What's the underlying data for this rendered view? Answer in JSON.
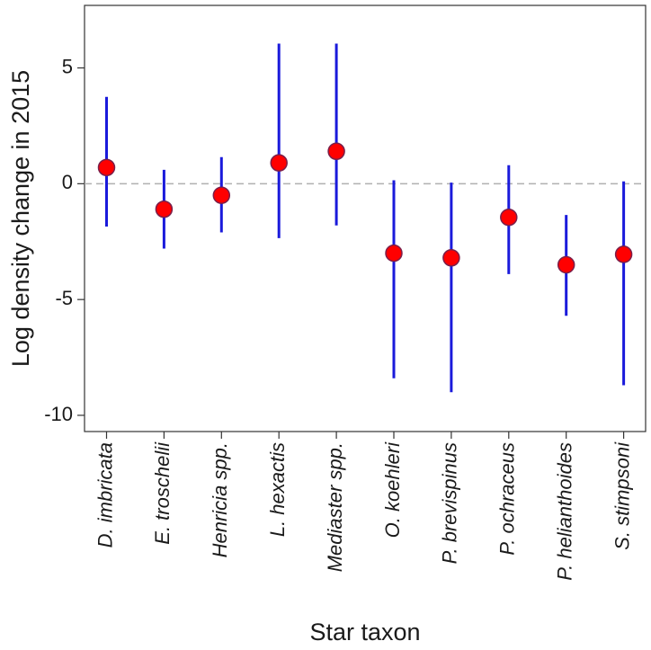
{
  "chart_data": {
    "type": "scatter",
    "title": "",
    "xlabel": "Star taxon",
    "ylabel": "Log density change in 2015",
    "ylim": [
      -10.7,
      7.7
    ],
    "yticks": [
      5,
      0,
      -5,
      -10
    ],
    "ytick_labels": [
      "5",
      "0",
      "-5",
      "-10"
    ],
    "reference_line": 0,
    "grid": false,
    "colors": {
      "point_fill": "#ff0000",
      "point_edge": "#7a1f4a",
      "error_bar": "#1a1adb",
      "reference_line": "#b0b0b0"
    },
    "categories": [
      "D. imbricata",
      "E. troschelii",
      "Henricia spp.",
      "L. hexactis",
      "Mediaster spp.",
      "O. koehleri",
      "P. brevispinus",
      "P. ochraceus",
      "P. helianthoides",
      "S. stimpsoni"
    ],
    "estimate": [
      0.7,
      -1.1,
      -0.5,
      0.9,
      1.4,
      -3.0,
      -3.2,
      -1.45,
      -3.5,
      -3.05
    ],
    "lower": [
      -1.85,
      -2.8,
      -2.1,
      -2.35,
      -1.8,
      -8.4,
      -9.0,
      -3.9,
      -5.7,
      -8.7
    ],
    "upper": [
      3.75,
      0.6,
      1.15,
      6.05,
      6.05,
      0.15,
      0.05,
      0.8,
      -1.35,
      0.1
    ]
  }
}
